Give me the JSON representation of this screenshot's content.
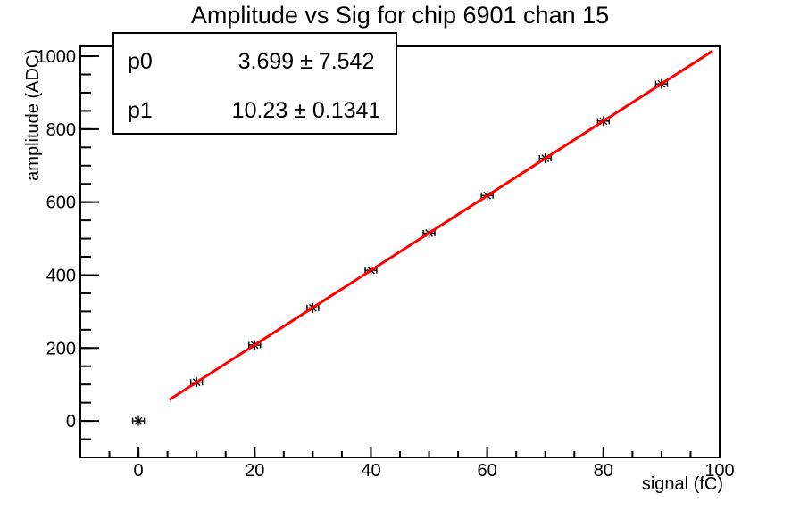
{
  "title": "Amplitude vs Sig for chip 6901 chan 15",
  "stats": {
    "rows": [
      {
        "param": "p0",
        "value": "3.699 ± 7.542"
      },
      {
        "param": "p1",
        "value": "10.23 ± 0.1341"
      }
    ]
  },
  "chart_data": {
    "type": "scatter",
    "title": "Amplitude vs Sig for chip 6901 chan 15",
    "xlabel": "signal (fC)",
    "ylabel": "amplitude (ADC)",
    "xlim": [
      -10,
      100
    ],
    "ylim": [
      -100,
      1027
    ],
    "grid": false,
    "legend": "stats-box top-left showing fit parameters",
    "x_major_ticks": [
      0,
      20,
      40,
      60,
      80,
      100
    ],
    "x_minor_step": 5,
    "y_major_ticks": [
      0,
      200,
      400,
      600,
      800,
      1000
    ],
    "y_minor_step": 50,
    "points": {
      "x": [
        0,
        10,
        20,
        30,
        40,
        50,
        60,
        70,
        80,
        90
      ],
      "y": [
        0,
        106,
        208,
        310,
        413,
        515,
        618,
        720,
        822,
        924
      ],
      "xerr": 1
    },
    "marker_style": "asterisk",
    "marker_color": "#000000",
    "axis_color": "#000000",
    "fit": {
      "label": "pol1",
      "p0": 3.699,
      "p0_err": 7.542,
      "p1": 10.23,
      "p1_err": 0.1341,
      "color": "#ff0000",
      "x_start": 5.3,
      "x_end": 98.8
    }
  }
}
